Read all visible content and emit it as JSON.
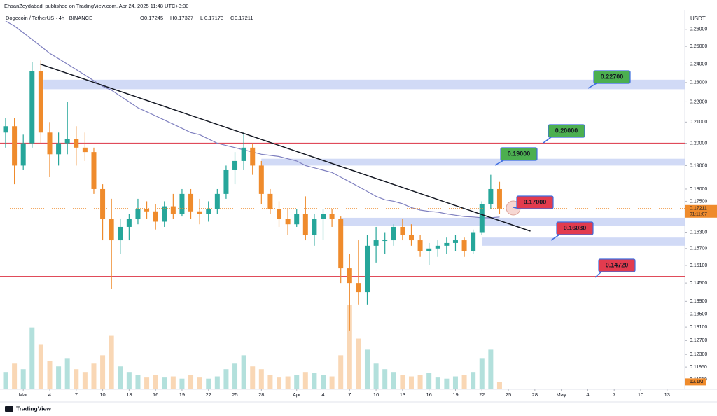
{
  "header": {
    "publisher": "EhsanZeydabadi published on TradingView.com, Apr 24, 2025 11:48 UTC+3:30",
    "symbol": "Dogecoin / TetherUS · 4h · BINANCE",
    "ohlc": [
      {
        "key": "O",
        "text": "0.17245"
      },
      {
        "key": "H",
        "text": "0.17327"
      },
      {
        "key": "L",
        "text": "0.17173"
      },
      {
        "key": "C",
        "text": "0.17211"
      }
    ]
  },
  "footer": {
    "brand": "TradingView"
  },
  "chart_data": {
    "type": "candlestick",
    "log_scale": true,
    "grid": false,
    "currency": "USDT",
    "up_color": "#26a69a",
    "down_color": "#ef8b2c",
    "ma_color": "#7e7fbf",
    "x": [
      -2,
      -1,
      0,
      1,
      2,
      3,
      4,
      5,
      6,
      7,
      8,
      9,
      10,
      11,
      12,
      13,
      14,
      15,
      16,
      17,
      18,
      19,
      20,
      21,
      22,
      23,
      24,
      25,
      26,
      27,
      28,
      29,
      30,
      31,
      32,
      33,
      34,
      35,
      36,
      37,
      38,
      39,
      40,
      41,
      42,
      43,
      44,
      45,
      46,
      47,
      48,
      49,
      50,
      51,
      52,
      53,
      54
    ],
    "open": [
      0.205,
      0.208,
      0.19,
      0.2,
      0.236,
      0.205,
      0.195,
      0.2,
      0.202,
      0.198,
      0.196,
      0.18,
      0.168,
      0.16,
      0.165,
      0.168,
      0.172,
      0.171,
      0.167,
      0.173,
      0.17,
      0.178,
      0.171,
      0.17,
      0.172,
      0.178,
      0.188,
      0.192,
      0.198,
      0.19,
      0.178,
      0.172,
      0.168,
      0.166,
      0.17,
      0.162,
      0.168,
      0.17,
      0.168,
      0.15,
      0.145,
      0.142,
      0.158,
      0.16,
      0.16,
      0.165,
      0.162,
      0.16,
      0.156,
      0.157,
      0.158,
      0.159,
      0.16,
      0.156,
      0.163,
      0.174,
      0.18
    ],
    "high": [
      0.212,
      0.212,
      0.204,
      0.241,
      0.242,
      0.21,
      0.205,
      0.22,
      0.208,
      0.205,
      0.198,
      0.182,
      0.176,
      0.168,
      0.17,
      0.176,
      0.175,
      0.174,
      0.175,
      0.178,
      0.18,
      0.18,
      0.176,
      0.175,
      0.18,
      0.19,
      0.196,
      0.205,
      0.2,
      0.192,
      0.18,
      0.175,
      0.172,
      0.172,
      0.177,
      0.17,
      0.172,
      0.172,
      0.169,
      0.155,
      0.16,
      0.162,
      0.165,
      0.163,
      0.166,
      0.168,
      0.166,
      0.162,
      0.159,
      0.16,
      0.161,
      0.162,
      0.161,
      0.164,
      0.175,
      0.186,
      0.183
    ],
    "low": [
      0.198,
      0.182,
      0.188,
      0.198,
      0.2,
      0.185,
      0.19,
      0.195,
      0.19,
      0.192,
      0.178,
      0.16,
      0.143,
      0.155,
      0.16,
      0.166,
      0.168,
      0.164,
      0.165,
      0.168,
      0.169,
      0.168,
      0.166,
      0.167,
      0.17,
      0.176,
      0.182,
      0.188,
      0.186,
      0.174,
      0.17,
      0.165,
      0.162,
      0.165,
      0.16,
      0.158,
      0.16,
      0.165,
      0.145,
      0.13,
      0.138,
      0.138,
      0.152,
      0.155,
      0.158,
      0.16,
      0.158,
      0.154,
      0.151,
      0.154,
      0.155,
      0.156,
      0.154,
      0.155,
      0.162,
      0.172,
      0.17
    ],
    "close": [
      0.208,
      0.19,
      0.2,
      0.236,
      0.205,
      0.195,
      0.2,
      0.202,
      0.198,
      0.196,
      0.18,
      0.168,
      0.16,
      0.165,
      0.168,
      0.172,
      0.171,
      0.167,
      0.173,
      0.17,
      0.178,
      0.171,
      0.17,
      0.172,
      0.178,
      0.188,
      0.192,
      0.198,
      0.19,
      0.178,
      0.172,
      0.168,
      0.166,
      0.17,
      0.162,
      0.168,
      0.17,
      0.168,
      0.15,
      0.145,
      0.142,
      0.158,
      0.16,
      0.16,
      0.165,
      0.162,
      0.16,
      0.156,
      0.157,
      0.158,
      0.159,
      0.16,
      0.156,
      0.163,
      0.174,
      0.18,
      0.17211
    ],
    "volume": [
      30,
      45,
      35,
      110,
      80,
      50,
      40,
      55,
      35,
      30,
      45,
      60,
      95,
      40,
      30,
      25,
      20,
      25,
      20,
      22,
      18,
      25,
      20,
      18,
      22,
      35,
      45,
      60,
      40,
      35,
      25,
      20,
      22,
      25,
      30,
      28,
      25,
      22,
      60,
      150,
      90,
      70,
      45,
      35,
      30,
      25,
      22,
      25,
      28,
      20,
      18,
      22,
      25,
      30,
      55,
      70,
      12.1
    ],
    "volume_ylim": [
      0,
      170
    ],
    "volume_label": "12.1M",
    "ma": [
      0.265,
      0.262,
      0.258,
      0.254,
      0.25,
      0.246,
      0.243,
      0.24,
      0.237,
      0.234,
      0.231,
      0.228,
      0.226,
      0.223,
      0.22,
      0.217,
      0.215,
      0.213,
      0.211,
      0.209,
      0.207,
      0.205,
      0.204,
      0.202,
      0.2,
      0.199,
      0.198,
      0.197,
      0.196,
      0.195,
      0.1945,
      0.194,
      0.193,
      0.192,
      0.19,
      0.189,
      0.188,
      0.187,
      0.185,
      0.183,
      0.181,
      0.179,
      0.177,
      0.1756,
      0.175,
      0.174,
      0.1725,
      0.1715,
      0.171,
      0.1707,
      0.17,
      0.1695,
      0.169,
      0.1688,
      0.1685,
      0.1685,
      0.1688
    ],
    "trendline": {
      "x": [
        1.9,
        57.5
      ],
      "values": [
        0.24,
        0.1634
      ],
      "color": "#131722"
    },
    "levels": [
      {
        "value": 0.2,
        "color": "#e04b5a"
      },
      {
        "value": 0.1472,
        "color": "#e04b5a"
      }
    ],
    "zones": [
      {
        "from": 2.3,
        "low": 0.2265,
        "high": 0.2315
      },
      {
        "from": 27,
        "low": 0.19,
        "high": 0.193
      },
      {
        "from": 36,
        "low": 0.1655,
        "high": 0.1685
      },
      {
        "from": 52,
        "low": 0.158,
        "high": 0.161
      }
    ],
    "annotations": [
      {
        "text": "0.22700",
        "color": "#4caf50"
      },
      {
        "text": "0.20000",
        "color": "#4caf50"
      },
      {
        "text": "0.19000",
        "color": "#4caf50"
      },
      {
        "text": "0.17000",
        "color": "#e23b4e"
      },
      {
        "text": "0.16030",
        "color": "#e23b4e"
      },
      {
        "text": "0.14720",
        "color": "#e23b4e"
      }
    ],
    "countdown": "01:11:07",
    "xlim": [
      -2,
      75
    ],
    "ylim": [
      0.1137,
      0.2693
    ],
    "xticks": [
      {
        "value": 0,
        "label": "Mar"
      },
      {
        "value": 3,
        "label": "4"
      },
      {
        "value": 6,
        "label": "7"
      },
      {
        "value": 9,
        "label": "10"
      },
      {
        "value": 12,
        "label": "13"
      },
      {
        "value": 15,
        "label": "16"
      },
      {
        "value": 18,
        "label": "19"
      },
      {
        "value": 21,
        "label": "22"
      },
      {
        "value": 24,
        "label": "25"
      },
      {
        "value": 27,
        "label": "28"
      },
      {
        "value": 31,
        "label": "Apr"
      },
      {
        "value": 34,
        "label": "4"
      },
      {
        "value": 37,
        "label": "7"
      },
      {
        "value": 40,
        "label": "10"
      },
      {
        "value": 43,
        "label": "13"
      },
      {
        "value": 46,
        "label": "16"
      },
      {
        "value": 49,
        "label": "19"
      },
      {
        "value": 52,
        "label": "22"
      },
      {
        "value": 55,
        "label": "25"
      },
      {
        "value": 58,
        "label": "28"
      },
      {
        "value": 61,
        "label": "May"
      },
      {
        "value": 64,
        "label": "4"
      },
      {
        "value": 67,
        "label": "7"
      },
      {
        "value": 70,
        "label": "10"
      },
      {
        "value": 73,
        "label": "13"
      }
    ],
    "yticks": [
      {
        "value": 0.26,
        "label": "0.26000"
      },
      {
        "value": 0.25,
        "label": "0.25000"
      },
      {
        "value": 0.24,
        "label": "0.24000"
      },
      {
        "value": 0.23,
        "label": "0.23000"
      },
      {
        "value": 0.22,
        "label": "0.22000"
      },
      {
        "value": 0.21,
        "label": "0.21000"
      },
      {
        "value": 0.2,
        "label": "0.20000"
      },
      {
        "value": 0.19,
        "label": "0.19000"
      },
      {
        "value": 0.18,
        "label": "0.18000"
      },
      {
        "value": 0.175,
        "label": "0.17500"
      },
      {
        "value": 0.163,
        "label": "0.16300"
      },
      {
        "value": 0.157,
        "label": "0.15700"
      },
      {
        "value": 0.151,
        "label": "0.15100"
      },
      {
        "value": 0.145,
        "label": "0.14500"
      },
      {
        "value": 0.139,
        "label": "0.13900"
      },
      {
        "value": 0.135,
        "label": "0.13500"
      },
      {
        "value": 0.131,
        "label": "0.13100"
      },
      {
        "value": 0.127,
        "label": "0.12700"
      },
      {
        "value": 0.123,
        "label": "0.12300"
      },
      {
        "value": 0.1195,
        "label": "0.11950"
      },
      {
        "value": 0.1161,
        "label": "0.11610"
      }
    ]
  }
}
